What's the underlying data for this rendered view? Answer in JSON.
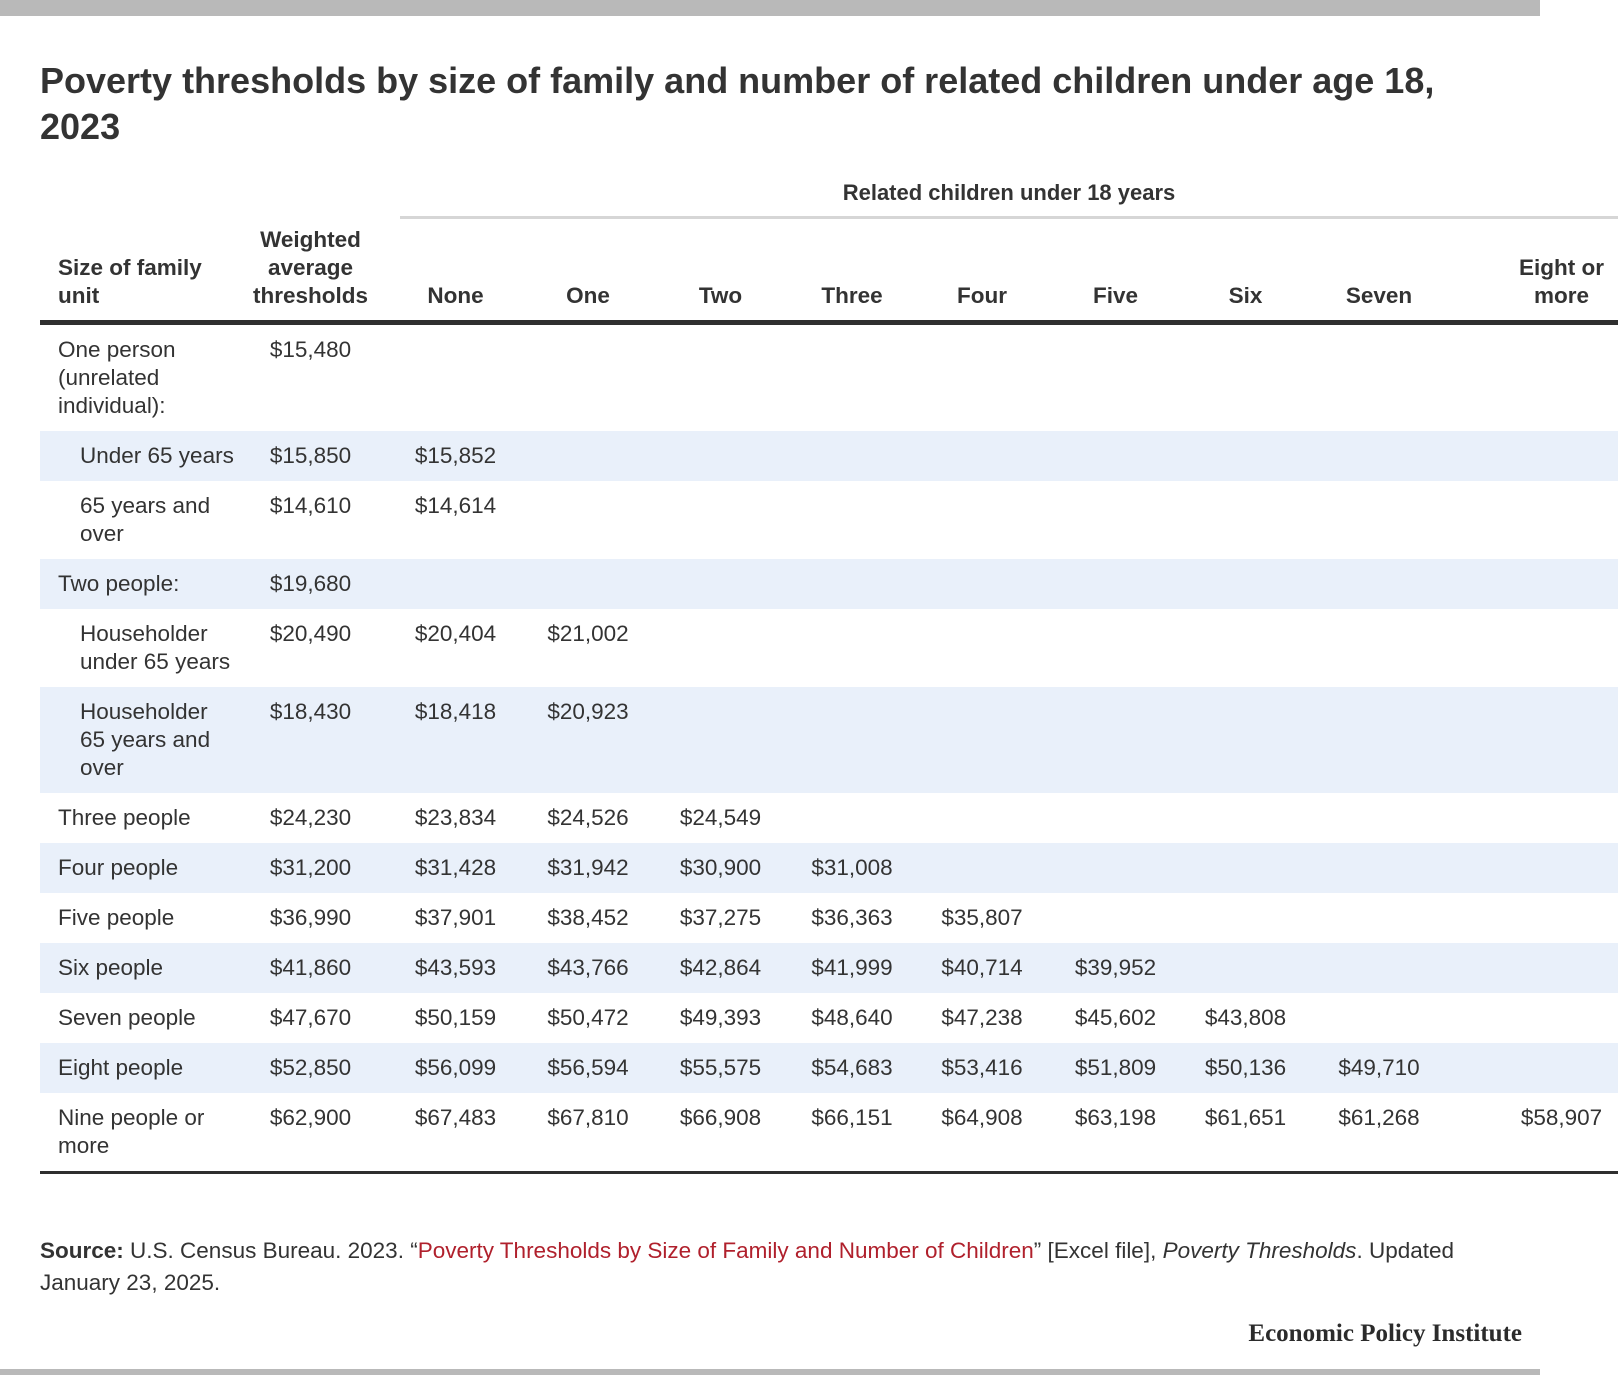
{
  "title": "Poverty thresholds by size of family and number of related children under age 18, 2023",
  "group_header": "Related children under 18 years",
  "columns": [
    "Size of family unit",
    "Weighted average thresholds",
    "None",
    "One",
    "Two",
    "Three",
    "Four",
    "Five",
    "Six",
    "Seven",
    "Eight or more"
  ],
  "rows": [
    {
      "label": "One person (unrelated individual):",
      "indent": false,
      "shaded": false,
      "cells": [
        "$15,480",
        "",
        "",
        "",
        "",
        "",
        "",
        "",
        "",
        ""
      ]
    },
    {
      "label": "Under 65 years",
      "indent": true,
      "shaded": true,
      "cells": [
        "$15,850",
        "$15,852",
        "",
        "",
        "",
        "",
        "",
        "",
        "",
        ""
      ]
    },
    {
      "label": "65 years and over",
      "indent": true,
      "shaded": false,
      "cells": [
        "$14,610",
        "$14,614",
        "",
        "",
        "",
        "",
        "",
        "",
        "",
        ""
      ]
    },
    {
      "label": "Two people:",
      "indent": false,
      "shaded": true,
      "cells": [
        "$19,680",
        "",
        "",
        "",
        "",
        "",
        "",
        "",
        "",
        ""
      ]
    },
    {
      "label": "Householder under 65 years",
      "indent": true,
      "shaded": false,
      "cells": [
        "$20,490",
        "$20,404",
        "$21,002",
        "",
        "",
        "",
        "",
        "",
        "",
        ""
      ]
    },
    {
      "label": "Householder 65 years and over",
      "indent": true,
      "shaded": true,
      "cells": [
        "$18,430",
        "$18,418",
        "$20,923",
        "",
        "",
        "",
        "",
        "",
        "",
        ""
      ]
    },
    {
      "label": "Three people",
      "indent": false,
      "shaded": false,
      "cells": [
        "$24,230",
        "$23,834",
        "$24,526",
        "$24,549",
        "",
        "",
        "",
        "",
        "",
        ""
      ]
    },
    {
      "label": "Four people",
      "indent": false,
      "shaded": true,
      "cells": [
        "$31,200",
        "$31,428",
        "$31,942",
        "$30,900",
        "$31,008",
        "",
        "",
        "",
        "",
        ""
      ]
    },
    {
      "label": "Five people",
      "indent": false,
      "shaded": false,
      "cells": [
        "$36,990",
        "$37,901",
        "$38,452",
        "$37,275",
        "$36,363",
        "$35,807",
        "",
        "",
        "",
        ""
      ]
    },
    {
      "label": "Six people",
      "indent": false,
      "shaded": true,
      "cells": [
        "$41,860",
        "$43,593",
        "$43,766",
        "$42,864",
        "$41,999",
        "$40,714",
        "$39,952",
        "",
        "",
        ""
      ]
    },
    {
      "label": "Seven people",
      "indent": false,
      "shaded": false,
      "cells": [
        "$47,670",
        "$50,159",
        "$50,472",
        "$49,393",
        "$48,640",
        "$47,238",
        "$45,602",
        "$43,808",
        "",
        ""
      ]
    },
    {
      "label": "Eight people",
      "indent": false,
      "shaded": true,
      "cells": [
        "$52,850",
        "$56,099",
        "$56,594",
        "$55,575",
        "$54,683",
        "$53,416",
        "$51,809",
        "$50,136",
        "$49,710",
        ""
      ]
    },
    {
      "label": "Nine people or more",
      "indent": false,
      "shaded": false,
      "cells": [
        "$62,900",
        "$67,483",
        "$67,810",
        "$66,908",
        "$66,151",
        "$64,908",
        "$63,198",
        "$61,651",
        "$61,268",
        "$58,907"
      ]
    }
  ],
  "source": {
    "label": "Source:",
    "text_before": " U.S. Census Bureau. 2023. “",
    "link_text": "Poverty Thresholds by Size of Family and Number of Children",
    "text_middle": "” [Excel file], ",
    "italic_text": "Poverty Thresholds",
    "text_after": ". Updated January 23, 2025."
  },
  "brand": "Economic Policy Institute",
  "colors": {
    "link": "#b0202c",
    "row_shade": "#e9f0fa",
    "bars": "#b9b9b9"
  }
}
